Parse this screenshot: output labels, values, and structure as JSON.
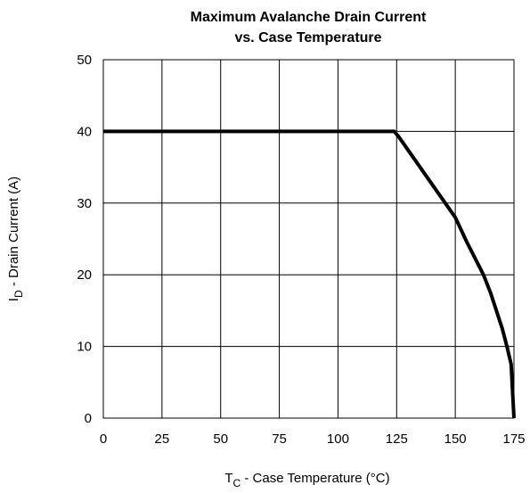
{
  "chart_data": {
    "type": "line",
    "title_line1": "Maximum Avalanche Drain Current",
    "title_line2": "vs. Case Temperature",
    "xlabel": {
      "main": "T",
      "sub": "C",
      "rest": " - Case Temperature (°C)"
    },
    "ylabel": {
      "main": "I",
      "sub": "D",
      "rest": " - Drain Current (A)"
    },
    "xlim": [
      0,
      175
    ],
    "ylim": [
      0,
      50
    ],
    "x_ticks": [
      0,
      25,
      50,
      75,
      100,
      125,
      150,
      175
    ],
    "y_ticks": [
      0,
      10,
      20,
      30,
      40,
      50
    ],
    "grid": true,
    "legend": "none",
    "line_color": "#000000",
    "series": [
      {
        "x": [
          0,
          124,
          126,
          150,
          155,
          162,
          165,
          170,
          172,
          173.8,
          175
        ],
        "y": [
          40,
          40,
          39.2,
          28,
          24.5,
          20,
          17.5,
          12.5,
          10,
          7.5,
          0
        ]
      }
    ]
  }
}
